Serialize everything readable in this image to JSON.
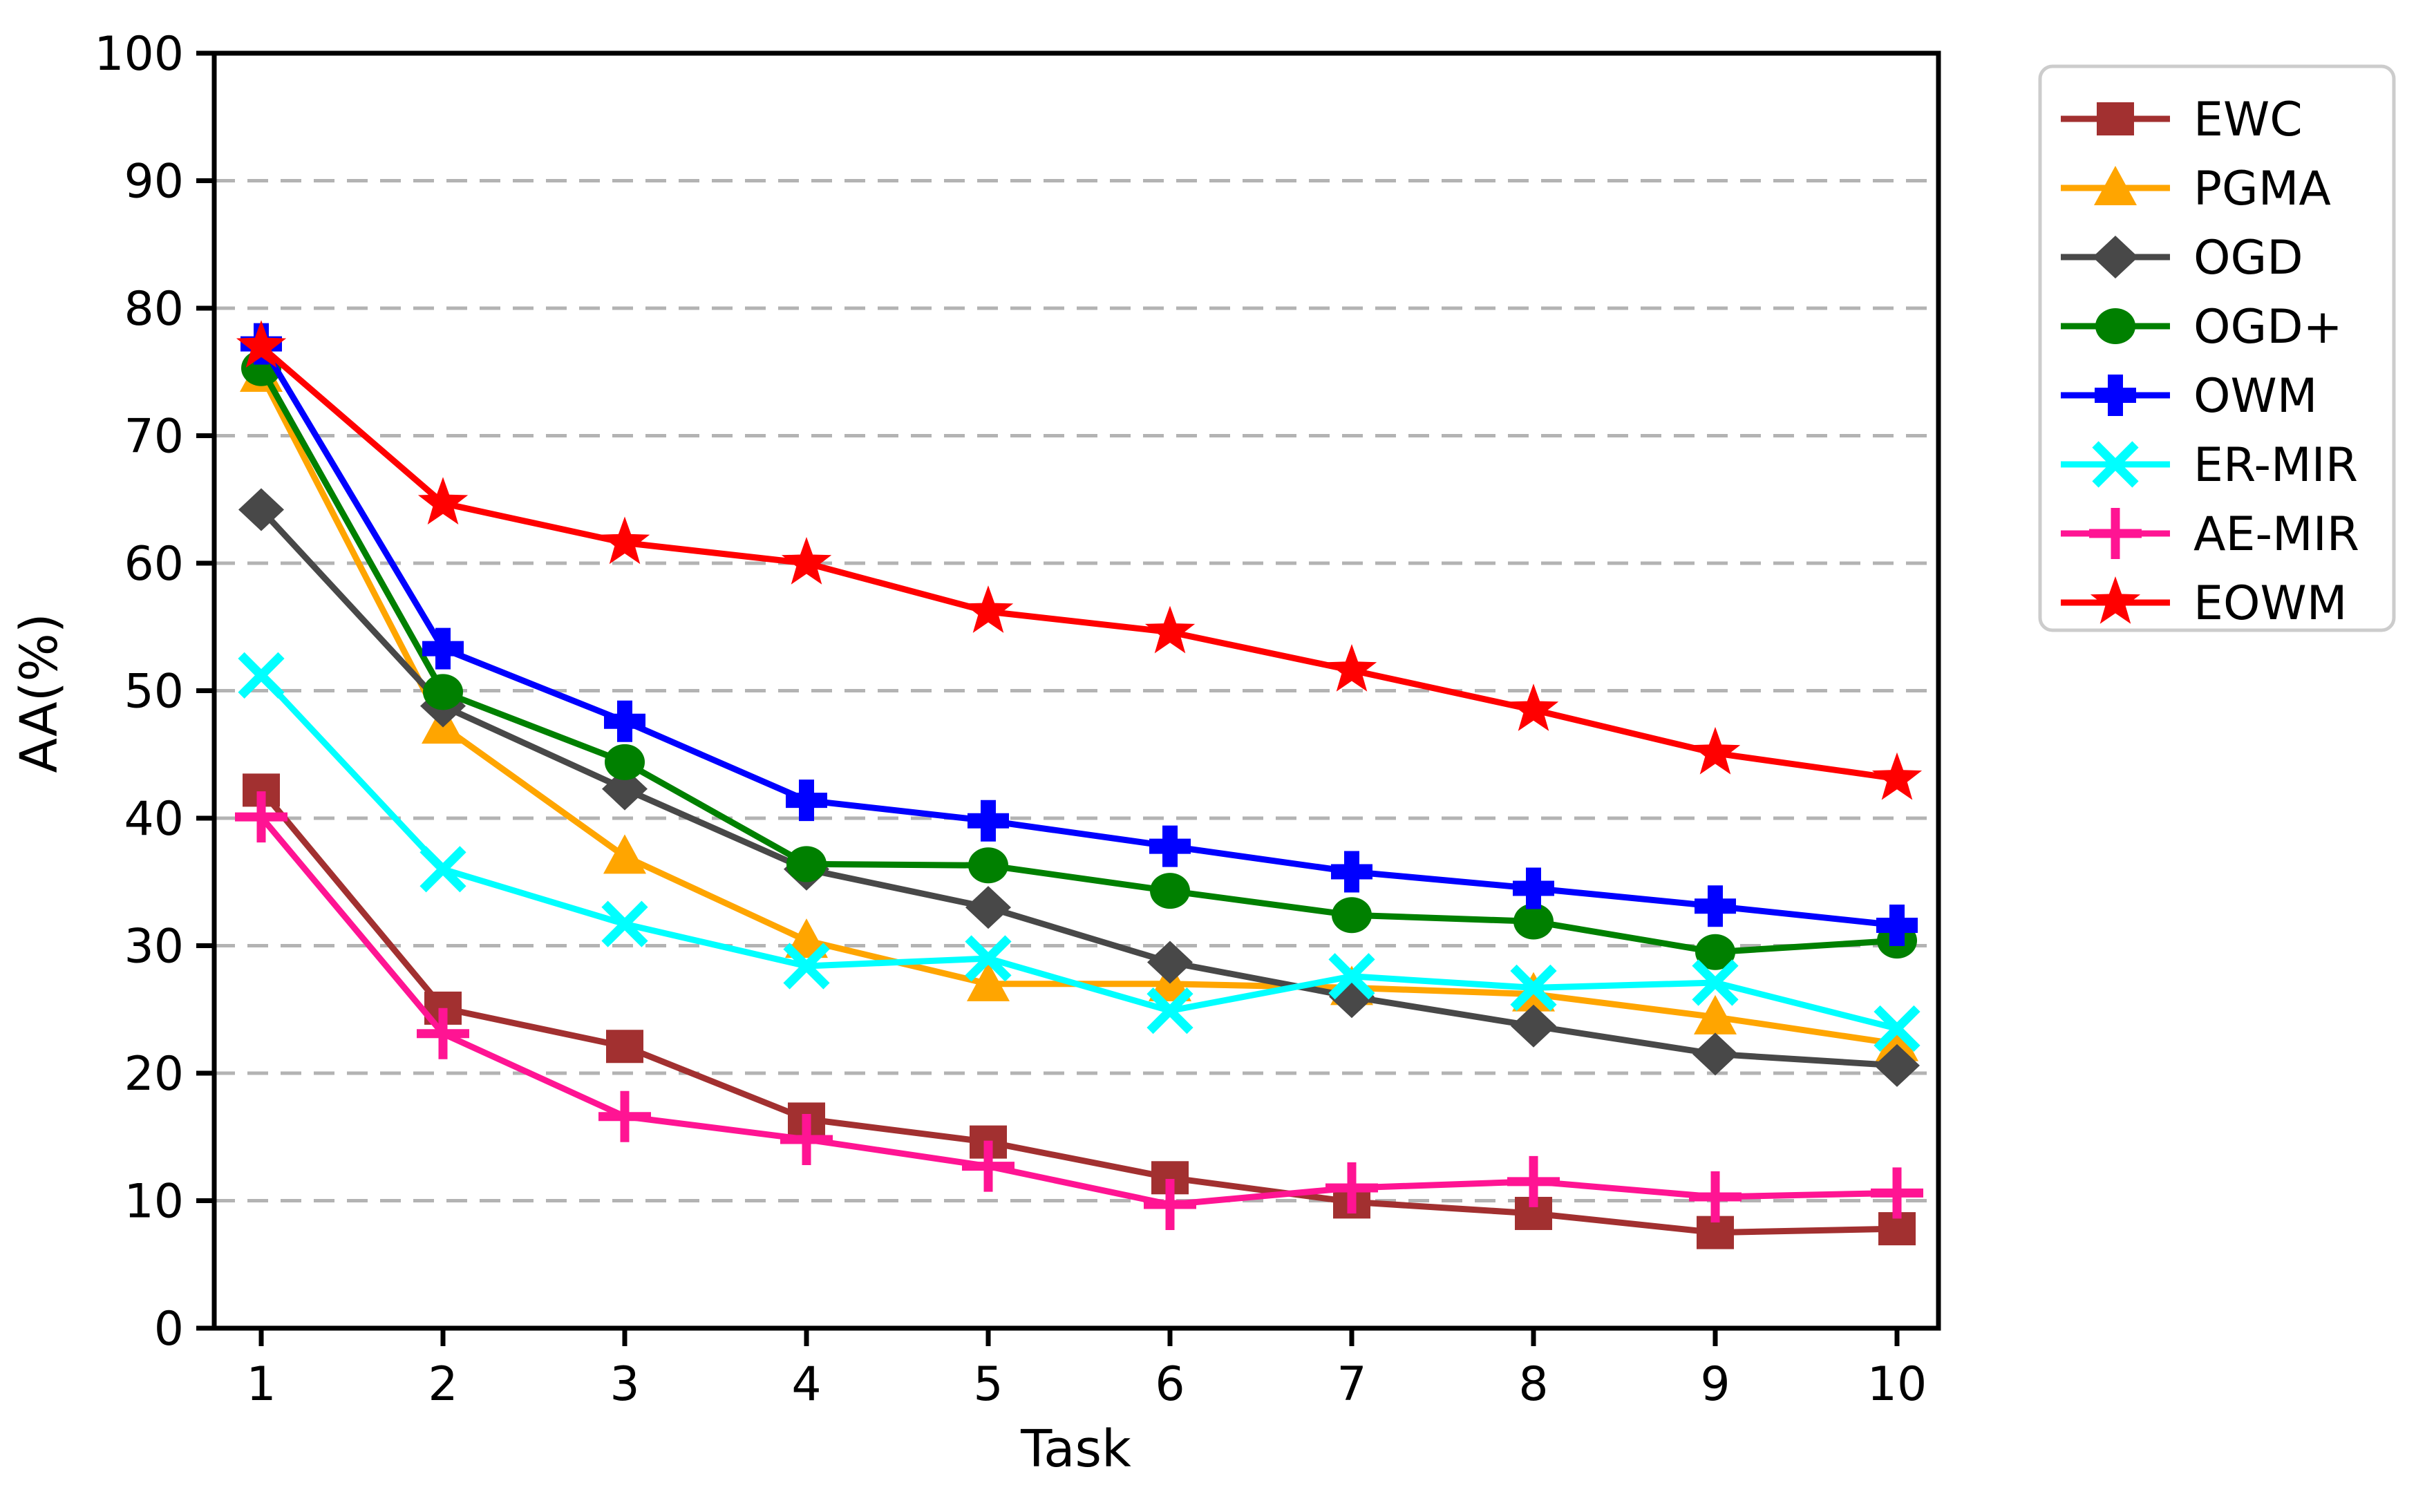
{
  "chart_data": {
    "type": "line",
    "title": "",
    "xlabel": "Task",
    "ylabel": "AA(%)",
    "x": [
      1,
      2,
      3,
      4,
      5,
      6,
      7,
      8,
      9,
      10
    ],
    "xlim": [
      0.7414,
      10.2281
    ],
    "ylim": [
      0,
      100
    ],
    "yticks": [
      0,
      10,
      20,
      30,
      40,
      50,
      60,
      70,
      80,
      90,
      100
    ],
    "grid": "horizontal-dashed",
    "legend_position": "outside-upper-right",
    "series": [
      {
        "name": "EWC",
        "color": "#A23030",
        "marker": "square",
        "values": [
          42.2,
          25.1,
          22.1,
          16.4,
          14.6,
          11.8,
          9.9,
          9.0,
          7.5,
          7.8
        ]
      },
      {
        "name": "PGMA",
        "color": "#FFA500",
        "marker": "triangle",
        "values": [
          74.8,
          47.2,
          37.0,
          30.4,
          27.0,
          27.0,
          26.7,
          26.2,
          24.4,
          22.3
        ]
      },
      {
        "name": "OGD",
        "color": "#484848",
        "marker": "diamond",
        "values": [
          64.2,
          48.8,
          42.3,
          36.0,
          33.0,
          28.7,
          26.0,
          23.7,
          21.5,
          20.6
        ]
      },
      {
        "name": "OGD+",
        "color": "#008000",
        "marker": "circle",
        "values": [
          75.3,
          49.9,
          44.4,
          36.4,
          36.3,
          34.3,
          32.4,
          31.9,
          29.5,
          30.4
        ]
      },
      {
        "name": "OWM",
        "color": "#0000FF",
        "marker": "plus-filled",
        "values": [
          77.2,
          53.3,
          47.6,
          41.4,
          39.8,
          37.8,
          35.8,
          34.5,
          33.1,
          31.6
        ]
      },
      {
        "name": "ER-MIR",
        "color": "#00FFFF",
        "marker": "x",
        "values": [
          51.2,
          36.0,
          31.7,
          28.4,
          29.0,
          24.9,
          27.6,
          26.7,
          27.1,
          23.5
        ]
      },
      {
        "name": "AE-MIR",
        "color": "#FF1493",
        "marker": "plus",
        "values": [
          40.1,
          23.1,
          16.6,
          14.8,
          12.7,
          9.7,
          11.0,
          11.5,
          10.3,
          10.6
        ]
      },
      {
        "name": "EOWM",
        "color": "#FF0000",
        "marker": "star",
        "values": [
          77.0,
          64.7,
          61.6,
          60.0,
          56.2,
          54.6,
          51.6,
          48.5,
          45.1,
          43.1
        ]
      }
    ]
  },
  "colors": {
    "background": "#FFFFFF",
    "axis": "#000000",
    "grid": "#B3B3B3",
    "legend_border": "#CCCCCC"
  }
}
